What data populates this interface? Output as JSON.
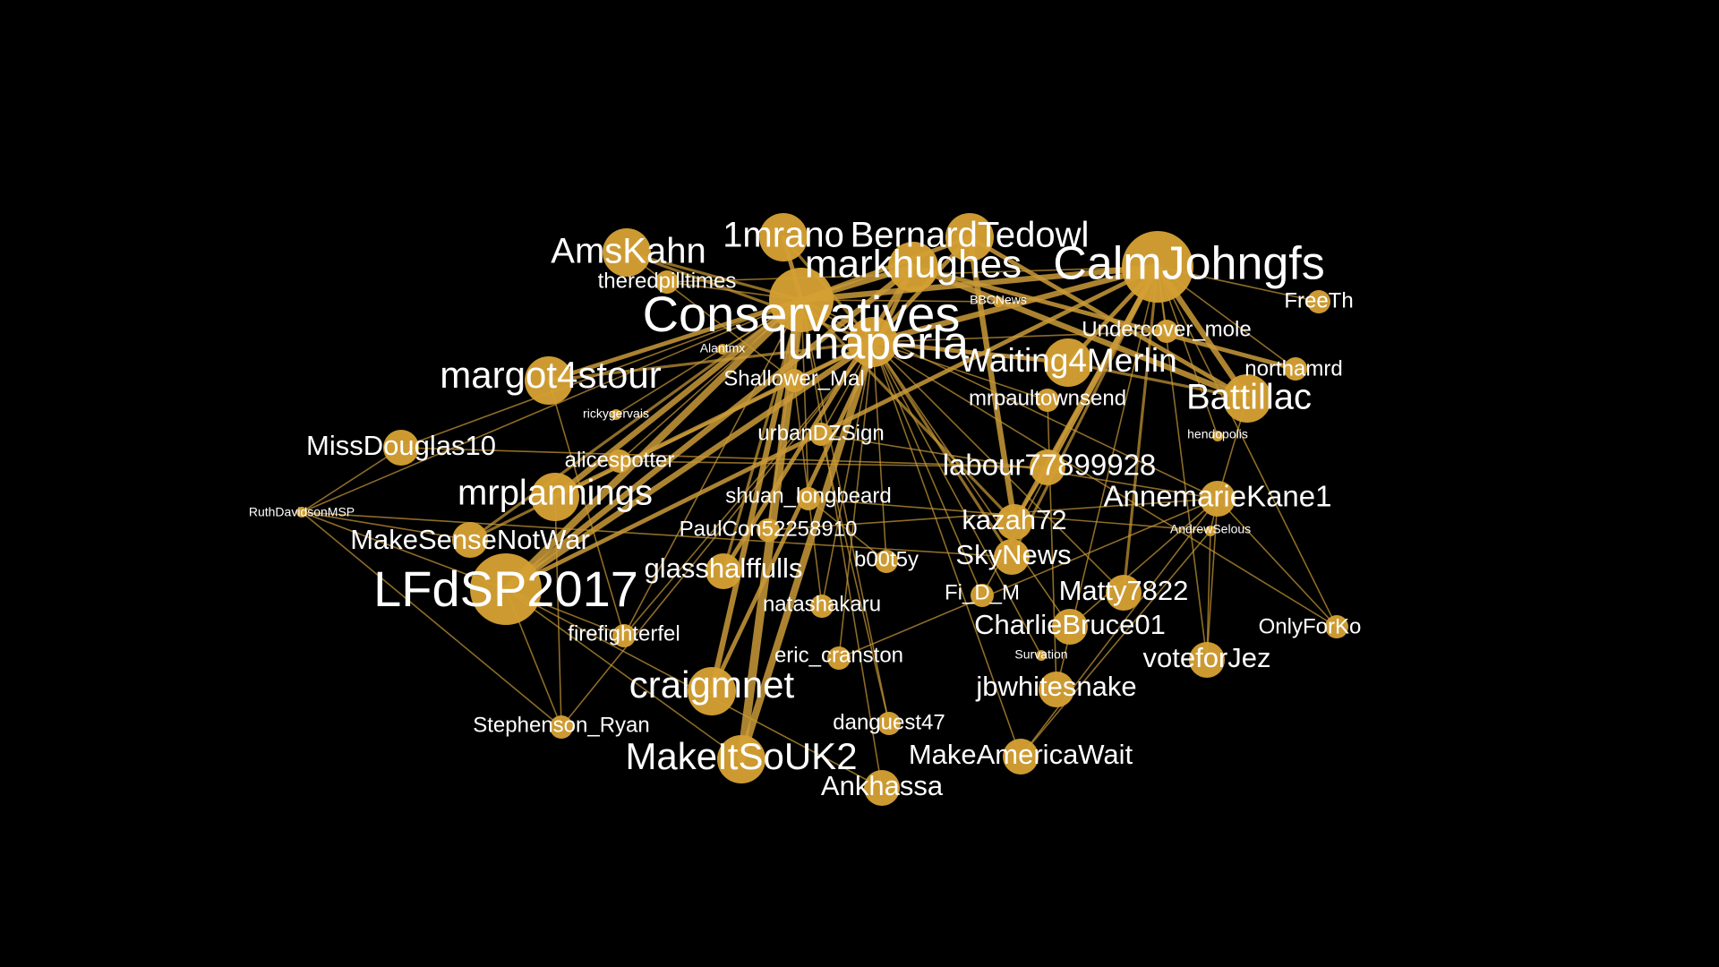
{
  "theme": {
    "background": "#000000",
    "node_color": "#D4A033",
    "edge_color": "#C99A38",
    "label_color": "#FFFFFF"
  },
  "nodes": [
    {
      "id": "Conservatives",
      "label": "Conservatives",
      "size": "xl"
    },
    {
      "id": "luna",
      "label": "lunaperla",
      "size": "xl"
    },
    {
      "id": "calm",
      "label": "CalmJohngfs",
      "size": "xl"
    },
    {
      "id": "lfd",
      "label": "LFdSP2017",
      "size": "xl"
    },
    {
      "id": "markhughes",
      "label": "markhughes",
      "size": "l"
    },
    {
      "id": "bernard",
      "label": "BernardTedowl",
      "size": "l"
    },
    {
      "id": "mrano",
      "label": "1mrano",
      "size": "l"
    },
    {
      "id": "amskahn",
      "label": "AmsKahn",
      "size": "l"
    },
    {
      "id": "margot",
      "label": "margot4stour",
      "size": "l"
    },
    {
      "id": "mrplannings",
      "label": "mrplannings",
      "size": "l"
    },
    {
      "id": "craigmnet",
      "label": "craigmnet",
      "size": "l"
    },
    {
      "id": "makeitso",
      "label": "MakeItSoUK2",
      "size": "l"
    },
    {
      "id": "battillac",
      "label": "Battillac",
      "size": "l"
    },
    {
      "id": "waiting",
      "label": "Waiting4Merlin",
      "size": "l"
    },
    {
      "id": "glasshalf",
      "label": "glasshalffulls",
      "size": "m"
    },
    {
      "id": "makesense",
      "label": "MakeSenseNotWar",
      "size": "m"
    },
    {
      "id": "missdouglas",
      "label": "MissDouglas10",
      "size": "m"
    },
    {
      "id": "labour",
      "label": "labour77899928",
      "size": "m"
    },
    {
      "id": "annemarie",
      "label": "AnnemarieKane1",
      "size": "m"
    },
    {
      "id": "kazah",
      "label": "kazah72",
      "size": "m"
    },
    {
      "id": "skynews",
      "label": "SkyNews",
      "size": "m"
    },
    {
      "id": "matty",
      "label": "Matty7822",
      "size": "m"
    },
    {
      "id": "charlie",
      "label": "CharlieBruce01",
      "size": "m"
    },
    {
      "id": "votefor",
      "label": "voteforJez",
      "size": "m"
    },
    {
      "id": "jbw",
      "label": "jbwhitesnake",
      "size": "m"
    },
    {
      "id": "makeamerica",
      "label": "MakeAmericaWait",
      "size": "m"
    },
    {
      "id": "ankhassa",
      "label": "Ankhassa",
      "size": "m"
    },
    {
      "id": "stephenson",
      "label": "Stephenson_Ryan",
      "size": "s"
    },
    {
      "id": "danguest",
      "label": "danguest47",
      "size": "s"
    },
    {
      "id": "eric",
      "label": "eric_cranston",
      "size": "s"
    },
    {
      "id": "natasha",
      "label": "natashakaru",
      "size": "s"
    },
    {
      "id": "firefighter",
      "label": "firefighterfel",
      "size": "s"
    },
    {
      "id": "fid",
      "label": "Fi_D_M",
      "size": "s"
    },
    {
      "id": "b00t5y",
      "label": "b00t5y",
      "size": "s"
    },
    {
      "id": "paulcon",
      "label": "PaulCon52258910",
      "size": "s"
    },
    {
      "id": "shuan",
      "label": "shuan_longbeard",
      "size": "s"
    },
    {
      "id": "alicespotter",
      "label": "alicespotter",
      "size": "s"
    },
    {
      "id": "urban",
      "label": "urbanDZSign",
      "size": "s"
    },
    {
      "id": "shallower",
      "label": "Shallower_Mal",
      "size": "s"
    },
    {
      "id": "mrpaul",
      "label": "mrpaultownsend",
      "size": "s"
    },
    {
      "id": "undercover",
      "label": "Undercover_mole",
      "size": "s"
    },
    {
      "id": "northamrd",
      "label": "northamrd",
      "size": "s"
    },
    {
      "id": "theredpill",
      "label": "theredpilltimes",
      "size": "s"
    },
    {
      "id": "freeth",
      "label": "FreeTh",
      "size": "s"
    },
    {
      "id": "onlyfor",
      "label": "OnlyForKo",
      "size": "s"
    },
    {
      "id": "ruth",
      "label": "RuthDavidsonMSP",
      "size": "xs"
    },
    {
      "id": "ricky",
      "label": "rickygervais",
      "size": "xs"
    },
    {
      "id": "alantmx",
      "label": "Alantmx",
      "size": "xs"
    },
    {
      "id": "bbcnews",
      "label": "BBCNews",
      "size": "xs"
    },
    {
      "id": "hendopolis",
      "label": "hendopolis",
      "size": "xs"
    },
    {
      "id": "andrewselous",
      "label": "AndrewSelous",
      "size": "xs"
    },
    {
      "id": "survation",
      "label": "Survation",
      "size": "xs"
    }
  ],
  "edges": [
    {
      "source": "lfd",
      "target": "Conservatives",
      "weight": 5
    },
    {
      "source": "lfd",
      "target": "luna",
      "weight": 4
    },
    {
      "source": "lfd",
      "target": "markhughes",
      "weight": 4
    },
    {
      "source": "lfd",
      "target": "calm",
      "weight": 3
    },
    {
      "source": "makeitso",
      "target": "Conservatives",
      "weight": 6
    },
    {
      "source": "makeitso",
      "target": "luna",
      "weight": 5
    },
    {
      "source": "craigmnet",
      "target": "Conservatives",
      "weight": 4
    },
    {
      "source": "craigmnet",
      "target": "markhughes",
      "weight": 3
    },
    {
      "source": "mrplannings",
      "target": "Conservatives",
      "weight": 4
    },
    {
      "source": "mrplannings",
      "target": "luna",
      "weight": 3
    },
    {
      "source": "margot",
      "target": "Conservatives",
      "weight": 3
    },
    {
      "source": "margot",
      "target": "luna",
      "weight": 2
    },
    {
      "source": "calm",
      "target": "Conservatives",
      "weight": 4
    },
    {
      "source": "calm",
      "target": "luna",
      "weight": 4
    },
    {
      "source": "calm",
      "target": "battillac",
      "weight": 4
    },
    {
      "source": "calm",
      "target": "waiting",
      "weight": 3
    },
    {
      "source": "calm",
      "target": "labour",
      "weight": 4
    },
    {
      "source": "calm",
      "target": "kazah",
      "weight": 3
    },
    {
      "source": "bernard",
      "target": "kazah",
      "weight": 4
    },
    {
      "source": "bernard",
      "target": "luna",
      "weight": 3
    },
    {
      "source": "bernard",
      "target": "battillac",
      "weight": 3
    },
    {
      "source": "bernard",
      "target": "Conservatives",
      "weight": 3
    },
    {
      "source": "markhughes",
      "target": "battillac",
      "weight": 4
    },
    {
      "source": "markhughes",
      "target": "northamrd",
      "weight": 3
    },
    {
      "source": "markhughes",
      "target": "Conservatives",
      "weight": 4
    },
    {
      "source": "mrano",
      "target": "Conservatives",
      "weight": 3
    },
    {
      "source": "mrano",
      "target": "luna",
      "weight": 2
    },
    {
      "source": "amskahn",
      "target": "Conservatives",
      "weight": 2
    },
    {
      "source": "amskahn",
      "target": "luna",
      "weight": 2
    },
    {
      "source": "waiting",
      "target": "luna",
      "weight": 3
    },
    {
      "source": "waiting",
      "target": "battillac",
      "weight": 2
    },
    {
      "source": "glasshalf",
      "target": "markhughes",
      "weight": 3
    },
    {
      "source": "glasshalf",
      "target": "Conservatives",
      "weight": 2
    },
    {
      "source": "makesense",
      "target": "luna",
      "weight": 2
    },
    {
      "source": "makesense",
      "target": "Conservatives",
      "weight": 2
    },
    {
      "source": "labour",
      "target": "kazah",
      "weight": 2
    },
    {
      "source": "skynews",
      "target": "luna",
      "weight": 2
    },
    {
      "source": "skynews",
      "target": "calm",
      "weight": 2
    },
    {
      "source": "matty",
      "target": "calm",
      "weight": 2
    },
    {
      "source": "ruth",
      "target": "lfd",
      "weight": 1
    },
    {
      "source": "ruth",
      "target": "Conservatives",
      "weight": 1
    },
    {
      "source": "ruth",
      "target": "makesense",
      "weight": 1
    },
    {
      "source": "ruth",
      "target": "missdouglas",
      "weight": 1
    },
    {
      "source": "ruth",
      "target": "skynews",
      "weight": 1
    },
    {
      "source": "ruth",
      "target": "stephenson",
      "weight": 1
    },
    {
      "source": "missdouglas",
      "target": "Conservatives",
      "weight": 1
    },
    {
      "source": "missdouglas",
      "target": "labour",
      "weight": 1
    },
    {
      "source": "stephenson",
      "target": "luna",
      "weight": 1
    },
    {
      "source": "stephenson",
      "target": "mrplannings",
      "weight": 1
    },
    {
      "source": "danguest",
      "target": "Conservatives",
      "weight": 1
    },
    {
      "source": "danguest",
      "target": "urban",
      "weight": 1
    },
    {
      "source": "eric",
      "target": "luna",
      "weight": 1
    },
    {
      "source": "eric",
      "target": "annemarie",
      "weight": 1
    },
    {
      "source": "natasha",
      "target": "luna",
      "weight": 1
    },
    {
      "source": "natasha",
      "target": "shallower",
      "weight": 1
    },
    {
      "source": "firefighter",
      "target": "Conservatives",
      "weight": 1
    },
    {
      "source": "firefighter",
      "target": "luna",
      "weight": 1
    },
    {
      "source": "firefighter",
      "target": "margot",
      "weight": 1
    },
    {
      "source": "fid",
      "target": "calm",
      "weight": 1
    },
    {
      "source": "fid",
      "target": "luna",
      "weight": 1
    },
    {
      "source": "b00t5y",
      "target": "luna",
      "weight": 1
    },
    {
      "source": "b00t5y",
      "target": "shuan",
      "weight": 1
    },
    {
      "source": "paulcon",
      "target": "Conservatives",
      "weight": 1
    },
    {
      "source": "paulcon",
      "target": "annemarie",
      "weight": 1
    },
    {
      "source": "shuan",
      "target": "Conservatives",
      "weight": 1
    },
    {
      "source": "shuan",
      "target": "andrewselous",
      "weight": 1
    },
    {
      "source": "alicespotter",
      "target": "Conservatives",
      "weight": 1
    },
    {
      "source": "alicespotter",
      "target": "labour",
      "weight": 1
    },
    {
      "source": "urban",
      "target": "luna",
      "weight": 1
    },
    {
      "source": "urban",
      "target": "annemarie",
      "weight": 1
    },
    {
      "source": "shallower",
      "target": "Conservatives",
      "weight": 1
    },
    {
      "source": "shallower",
      "target": "amskahn",
      "weight": 1
    },
    {
      "source": "mrpaul",
      "target": "luna",
      "weight": 1
    },
    {
      "source": "mrpaul",
      "target": "jbw",
      "weight": 1
    },
    {
      "source": "undercover",
      "target": "luna",
      "weight": 1
    },
    {
      "source": "undercover",
      "target": "calm",
      "weight": 1
    },
    {
      "source": "northamrd",
      "target": "calm",
      "weight": 1
    },
    {
      "source": "theredpill",
      "target": "Conservatives",
      "weight": 1
    },
    {
      "source": "theredpill",
      "target": "calm",
      "weight": 1
    },
    {
      "source": "freeth",
      "target": "calm",
      "weight": 1
    },
    {
      "source": "onlyfor",
      "target": "annemarie",
      "weight": 1
    },
    {
      "source": "onlyfor",
      "target": "calm",
      "weight": 1
    },
    {
      "source": "onlyfor",
      "target": "Conservatives",
      "weight": 1
    },
    {
      "source": "ricky",
      "target": "Conservatives",
      "weight": 1
    },
    {
      "source": "alantmx",
      "target": "Conservatives",
      "weight": 1
    },
    {
      "source": "bbcnews",
      "target": "Conservatives",
      "weight": 1
    },
    {
      "source": "hendopolis",
      "target": "calm",
      "weight": 1
    },
    {
      "source": "andrewselous",
      "target": "annemarie",
      "weight": 1
    },
    {
      "source": "andrewselous",
      "target": "votefor",
      "weight": 1
    },
    {
      "source": "andrewselous",
      "target": "makeamerica",
      "weight": 1
    },
    {
      "source": "survation",
      "target": "luna",
      "weight": 1
    },
    {
      "source": "annemarie",
      "target": "battillac",
      "weight": 1
    },
    {
      "source": "annemarie",
      "target": "votefor",
      "weight": 1
    },
    {
      "source": "annemarie",
      "target": "Conservatives",
      "weight": 1
    },
    {
      "source": "votefor",
      "target": "calm",
      "weight": 1
    },
    {
      "source": "makeamerica",
      "target": "luna",
      "weight": 1
    },
    {
      "source": "makeamerica",
      "target": "annemarie",
      "weight": 1
    },
    {
      "source": "ankhassa",
      "target": "Conservatives",
      "weight": 1
    },
    {
      "source": "ankhassa",
      "target": "lfd",
      "weight": 1
    },
    {
      "source": "charlie",
      "target": "luna",
      "weight": 1
    },
    {
      "source": "charlie",
      "target": "annemarie",
      "weight": 1
    },
    {
      "source": "jbw",
      "target": "calm",
      "weight": 1
    },
    {
      "source": "matty",
      "target": "luna",
      "weight": 1
    },
    {
      "source": "kazah",
      "target": "Conservatives",
      "weight": 2
    },
    {
      "source": "lfd",
      "target": "stephenson",
      "weight": 1
    },
    {
      "source": "lfd",
      "target": "makeitso",
      "weight": 1
    },
    {
      "source": "lfd",
      "target": "firefighter",
      "weight": 1
    }
  ]
}
